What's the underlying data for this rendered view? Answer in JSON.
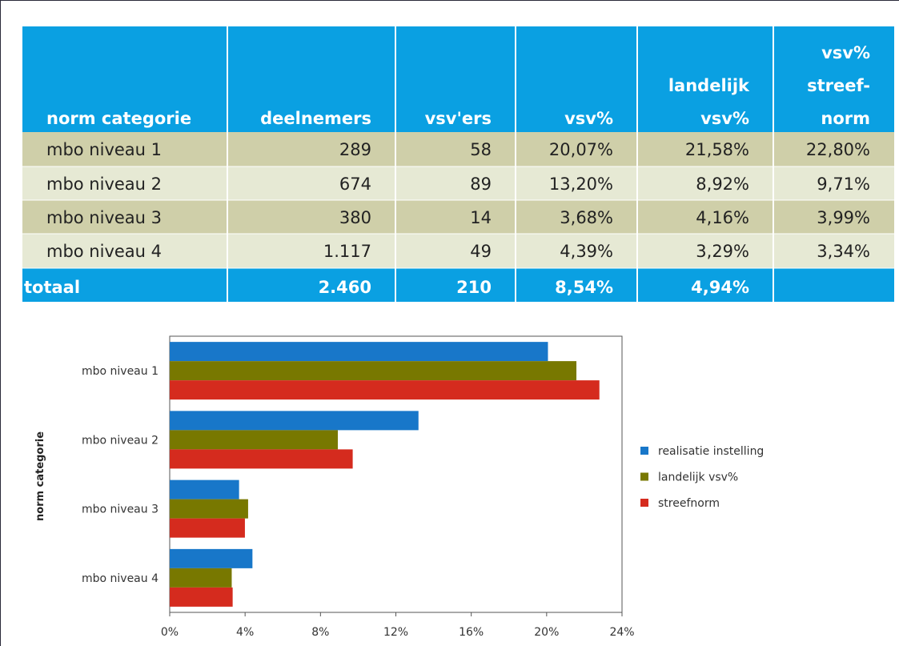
{
  "table": {
    "header": [
      [
        "norm categorie"
      ],
      [
        "deelnemers"
      ],
      [
        "vsv'ers"
      ],
      [
        "vsv%"
      ],
      [
        "landelijk",
        "vsv%"
      ],
      [
        "vsv%",
        "streef-",
        "norm"
      ]
    ],
    "rows": [
      [
        "mbo niveau 1",
        "289",
        "58",
        "20,07%",
        "21,58%",
        "22,80%"
      ],
      [
        "mbo niveau 2",
        "674",
        "89",
        {
          "text": "13,20%",
          "color": "#e8251f"
        },
        "8,92%",
        "9,71%"
      ],
      [
        "mbo niveau 3",
        "380",
        "14",
        "3,68%",
        {
          "text": "4,16%",
          "color": "#e8251f"
        },
        "3,99%"
      ],
      [
        "mbo niveau 4",
        "1.117",
        "49",
        {
          "text": "4,39%",
          "color": "#e8251f"
        },
        "3,29%",
        "3,34%"
      ]
    ],
    "total": [
      "totaal",
      "2.460",
      "210",
      "8,54%",
      "4,94%"
    ]
  },
  "chart_data": {
    "type": "hbar",
    "categories": [
      "mbo niveau 1",
      "mbo niveau 2",
      "mbo niveau 3",
      "mbo niveau 4"
    ],
    "ylabel": "norm categorie",
    "series": [
      {
        "name": "realisatie instelling",
        "color": "#1877c9",
        "values": [
          20.07,
          13.2,
          3.68,
          4.39
        ]
      },
      {
        "name": "landelijk vsv%",
        "color": "#787800",
        "values": [
          21.58,
          8.92,
          4.16,
          3.29
        ]
      },
      {
        "name": "streefnorm",
        "color": "#d52b1e",
        "values": [
          22.8,
          9.71,
          3.99,
          3.34
        ]
      }
    ],
    "xlim": [
      0,
      24
    ],
    "xticks": [
      {
        "value": 0,
        "label": "0%"
      },
      {
        "value": 4,
        "label": "4%"
      },
      {
        "value": 8,
        "label": "8%"
      },
      {
        "value": 12,
        "label": "12%"
      },
      {
        "value": 16,
        "label": "16%"
      },
      {
        "value": 20,
        "label": "20%"
      },
      {
        "value": 24,
        "label": "24%"
      }
    ],
    "legend": "right"
  }
}
